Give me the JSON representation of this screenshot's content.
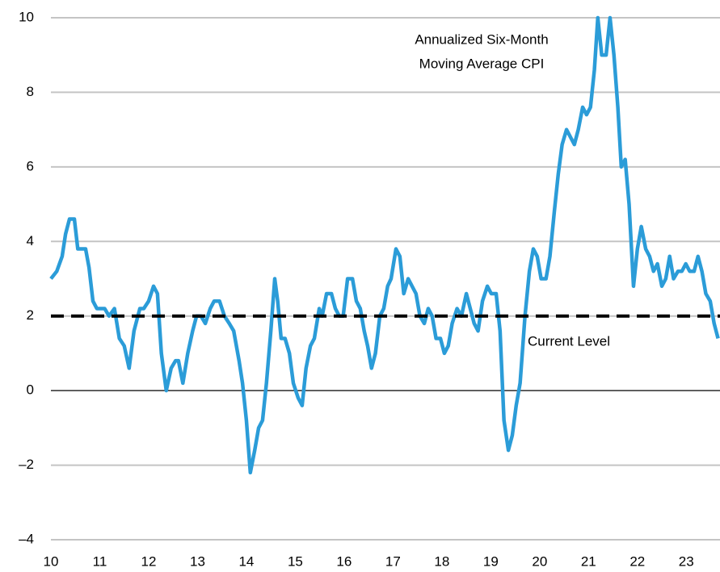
{
  "chart_data": {
    "type": "line",
    "annotation": [
      "Annualized Six-Month",
      "Moving Average CPI"
    ],
    "reference_line": {
      "value": 2,
      "label": "Current Level"
    },
    "xlim": [
      10,
      23.69
    ],
    "xticks": [
      10,
      11,
      12,
      13,
      14,
      15,
      16,
      17,
      18,
      19,
      20,
      21,
      22,
      23
    ],
    "ylim": [
      -4,
      10
    ],
    "yticks": [
      {
        "value": -4,
        "label": "–4"
      },
      {
        "value": -2,
        "label": "–2"
      },
      0,
      2,
      4,
      6,
      8,
      10
    ],
    "grid": true,
    "series": [
      {
        "name": "Annualized Six-Month Moving Average CPI",
        "color": "#2b9cd8",
        "x": [
          10.0,
          10.12,
          10.23,
          10.3,
          10.38,
          10.48,
          10.55,
          10.71,
          10.78,
          10.86,
          10.94,
          11.1,
          11.19,
          11.3,
          11.4,
          11.5,
          11.6,
          11.7,
          11.82,
          11.9,
          12.0,
          12.1,
          12.18,
          12.26,
          12.36,
          12.46,
          12.55,
          12.61,
          12.7,
          12.8,
          12.9,
          12.98,
          13.07,
          13.16,
          13.26,
          13.34,
          13.45,
          13.55,
          13.65,
          13.74,
          13.85,
          13.92,
          14.0,
          14.08,
          14.17,
          14.25,
          14.33,
          14.41,
          14.5,
          14.58,
          14.64,
          14.71,
          14.79,
          14.88,
          14.96,
          15.06,
          15.14,
          15.22,
          15.31,
          15.39,
          15.49,
          15.55,
          15.64,
          15.74,
          15.82,
          15.9,
          15.98,
          16.07,
          16.17,
          16.25,
          16.33,
          16.41,
          16.48,
          16.56,
          16.64,
          16.73,
          16.81,
          16.89,
          16.96,
          17.06,
          17.14,
          17.22,
          17.31,
          17.39,
          17.47,
          17.55,
          17.64,
          17.72,
          17.8,
          17.88,
          17.97,
          18.05,
          18.13,
          18.21,
          18.31,
          18.4,
          18.5,
          18.58,
          18.66,
          18.74,
          18.83,
          18.93,
          19.01,
          19.11,
          19.19,
          19.27,
          19.36,
          19.44,
          19.52,
          19.6,
          19.7,
          19.79,
          19.87,
          19.95,
          20.03,
          20.13,
          20.21,
          20.3,
          20.38,
          20.46,
          20.55,
          20.63,
          20.71,
          20.79,
          20.88,
          20.96,
          21.04,
          21.12,
          21.19,
          21.27,
          21.36,
          21.44,
          21.52,
          21.6,
          21.67,
          21.75,
          21.83,
          21.92,
          22.0,
          22.08,
          22.17,
          22.25,
          22.33,
          22.41,
          22.5,
          22.58,
          22.66,
          22.74,
          22.83,
          22.91,
          22.99,
          23.07,
          23.16,
          23.24,
          23.32,
          23.4,
          23.49,
          23.57,
          23.65
        ],
        "values": [
          3.0,
          3.2,
          3.6,
          4.2,
          4.6,
          4.6,
          3.8,
          3.8,
          3.3,
          2.4,
          2.2,
          2.2,
          2.0,
          2.2,
          1.4,
          1.2,
          0.6,
          1.6,
          2.2,
          2.2,
          2.4,
          2.8,
          2.6,
          1.0,
          0.0,
          0.6,
          0.8,
          0.8,
          0.2,
          1.0,
          1.6,
          2.0,
          2.0,
          1.8,
          2.2,
          2.4,
          2.4,
          2.0,
          1.8,
          1.6,
          0.8,
          0.2,
          -0.8,
          -2.2,
          -1.6,
          -1.0,
          -0.8,
          0.2,
          1.6,
          3.0,
          2.4,
          1.4,
          1.4,
          1.0,
          0.2,
          -0.2,
          -0.4,
          0.6,
          1.2,
          1.4,
          2.2,
          2.0,
          2.6,
          2.6,
          2.2,
          2.0,
          2.0,
          3.0,
          3.0,
          2.4,
          2.2,
          1.6,
          1.2,
          0.6,
          1.0,
          2.0,
          2.2,
          2.8,
          3.0,
          3.8,
          3.6,
          2.6,
          3.0,
          2.8,
          2.6,
          2.0,
          1.8,
          2.2,
          2.0,
          1.4,
          1.4,
          1.0,
          1.2,
          1.8,
          2.2,
          2.0,
          2.6,
          2.2,
          1.8,
          1.6,
          2.4,
          2.8,
          2.6,
          2.6,
          1.6,
          -0.8,
          -1.6,
          -1.2,
          -0.4,
          0.2,
          2.0,
          3.2,
          3.8,
          3.6,
          3.0,
          3.0,
          3.6,
          4.8,
          5.8,
          6.6,
          7.0,
          6.8,
          6.6,
          7.0,
          7.6,
          7.4,
          7.6,
          8.6,
          10.0,
          9.0,
          9.0,
          10.0,
          9.0,
          7.6,
          6.0,
          6.2,
          5.0,
          2.8,
          3.8,
          4.4,
          3.8,
          3.6,
          3.2,
          3.4,
          2.8,
          3.0,
          3.6,
          3.0,
          3.2,
          3.2,
          3.4,
          3.2,
          3.2,
          3.6,
          3.2,
          2.6,
          2.4,
          1.8,
          1.4
        ]
      }
    ]
  }
}
